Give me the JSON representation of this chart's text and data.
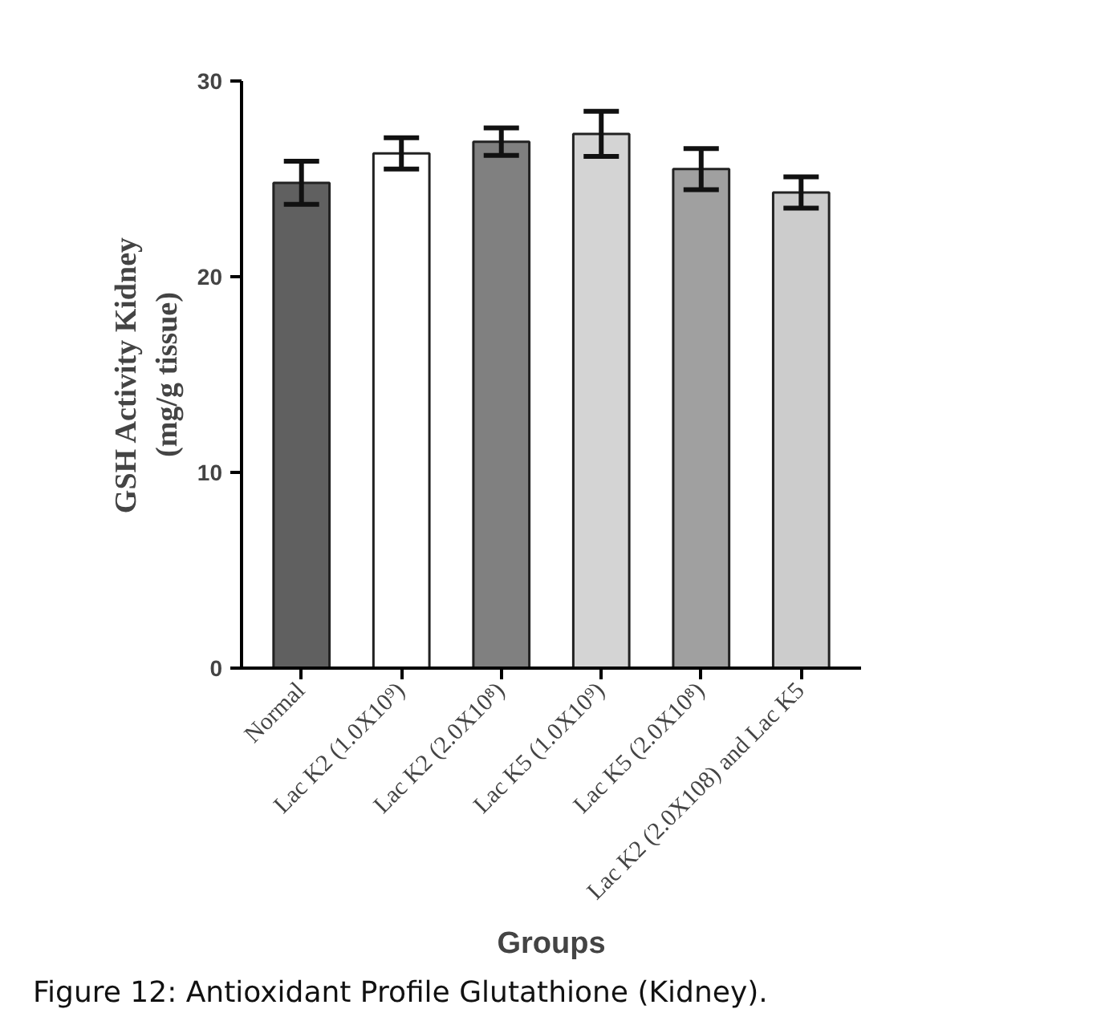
{
  "chart_data": {
    "type": "bar",
    "categories": [
      "Normal",
      "Lac K2 (1.0X10⁹)",
      "Lac K2 (2.0X10⁸)",
      "Lac K5 (1.0X10⁹)",
      "Lac K5 (2.0X10⁸)",
      "Lac K2 (2.0X108) and Lac K5"
    ],
    "values": [
      24.8,
      26.3,
      26.9,
      27.3,
      25.5,
      24.3
    ],
    "errors": [
      1.1,
      0.8,
      0.7,
      1.15,
      1.05,
      0.8
    ],
    "colors": [
      "#606060",
      "#ffffff",
      "#808080",
      "#d4d4d4",
      "#a0a0a0",
      "#cccccc"
    ],
    "xlabel": "Groups",
    "ylabel": "GSH Activity Kidney\n(mg/g tissue)",
    "ylim": [
      0,
      30
    ],
    "yticks": [
      0,
      10,
      20,
      30
    ],
    "grid": false,
    "annotations": [
      "Figure 12: Antioxidant Profile Glutathione (Kidney)."
    ]
  }
}
